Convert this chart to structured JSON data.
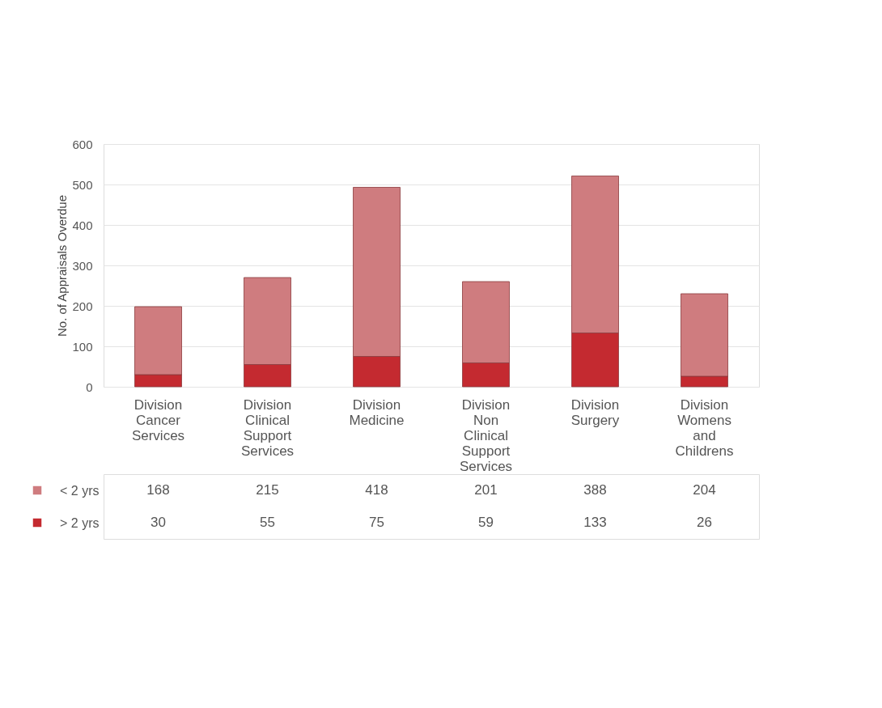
{
  "chart_data": {
    "type": "bar",
    "stacked": true,
    "ylabel": "No. of Appraisals Overdue",
    "categories": [
      "Division Cancer Services",
      "Division Clinical Support Services",
      "Division Medicine",
      "Division Non Clinical Support Services",
      "Division Surgery",
      "Division Womens and Childrens"
    ],
    "series": [
      {
        "name": "> 2 yrs",
        "color": "#c42a30",
        "values": [
          30,
          55,
          75,
          59,
          133,
          26
        ]
      },
      {
        "name": "< 2 yrs",
        "color": "#cf7c7f",
        "values": [
          168,
          215,
          418,
          201,
          388,
          204
        ]
      }
    ],
    "ylim": [
      0,
      600
    ],
    "yticks": [
      0,
      100,
      200,
      300,
      400,
      500,
      600
    ],
    "grid": "y",
    "legend": "bottom left",
    "data_labels": true
  }
}
